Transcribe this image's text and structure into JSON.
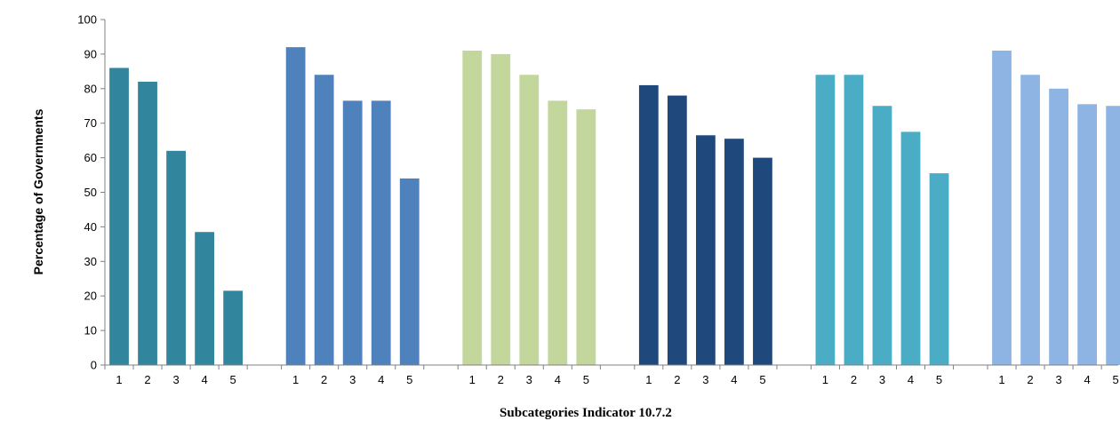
{
  "chart_data": {
    "type": "bar",
    "title": "",
    "xlabel": "Subcategories Indicator 10.7.2",
    "ylabel": "Percentage of Governments",
    "ylim": [
      0,
      100
    ],
    "y_ticks": [
      0,
      10,
      20,
      30,
      40,
      50,
      60,
      70,
      80,
      90,
      100
    ],
    "grid": false,
    "legend": "none",
    "groups": [
      {
        "color": "#31859C",
        "categories": [
          "1",
          "2",
          "3",
          "4",
          "5"
        ],
        "values": [
          86,
          82,
          62,
          38.5,
          21.5
        ]
      },
      {
        "color": "#4F81BD",
        "categories": [
          "1",
          "2",
          "3",
          "4",
          "5"
        ],
        "values": [
          92,
          84,
          76.5,
          76.5,
          54
        ]
      },
      {
        "color": "#C3D69B",
        "categories": [
          "1",
          "2",
          "3",
          "4",
          "5"
        ],
        "values": [
          91,
          90,
          84,
          76.5,
          74
        ]
      },
      {
        "color": "#1F497D",
        "categories": [
          "1",
          "2",
          "3",
          "4",
          "5"
        ],
        "values": [
          81,
          78,
          66.5,
          65.5,
          60
        ]
      },
      {
        "color": "#4BACC6",
        "categories": [
          "1",
          "2",
          "3",
          "4",
          "5"
        ],
        "values": [
          84,
          84,
          75,
          67.5,
          55.5
        ]
      },
      {
        "color": "#8EB4E3",
        "categories": [
          "1",
          "2",
          "3",
          "4",
          "5"
        ],
        "values": [
          91,
          84,
          80,
          75.5,
          75
        ]
      }
    ]
  }
}
